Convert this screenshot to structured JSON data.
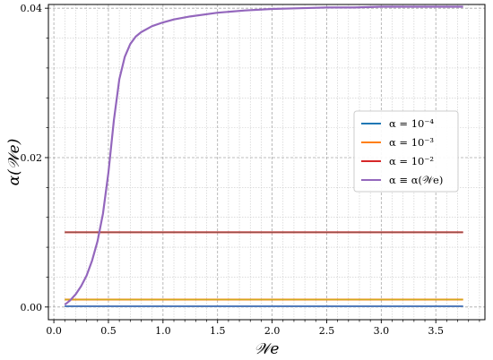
{
  "chart_data": {
    "type": "line",
    "title": "",
    "xlabel": "𝒲e",
    "ylabel": "α(𝒲e)",
    "xlim": [
      -0.05,
      3.95
    ],
    "ylim": [
      -0.0017,
      0.0405
    ],
    "x_ticks": [
      0.0,
      0.5,
      1.0,
      1.5,
      2.0,
      2.5,
      3.0,
      3.5
    ],
    "x_tick_labels": [
      "0.0",
      "0.5",
      "1.0",
      "1.5",
      "2.0",
      "2.5",
      "3.0",
      "3.5"
    ],
    "x_minor_ticks": [
      0.1,
      0.2,
      0.3,
      0.4,
      0.6,
      0.7,
      0.8,
      0.9,
      1.1,
      1.2,
      1.3,
      1.4,
      1.6,
      1.7,
      1.8,
      1.9,
      2.1,
      2.2,
      2.3,
      2.4,
      2.6,
      2.7,
      2.8,
      2.9,
      3.1,
      3.2,
      3.3,
      3.4,
      3.6,
      3.7,
      3.8,
      3.9
    ],
    "y_ticks": [
      0.0,
      0.02,
      0.04
    ],
    "y_tick_labels": [
      "0.00",
      "0.02",
      "0.04"
    ],
    "y_minor_ticks": [
      0.004,
      0.008,
      0.012,
      0.016,
      0.024,
      0.028,
      0.032,
      0.036
    ],
    "grid": true,
    "legend_position": "right",
    "series": [
      {
        "name": "α = 10⁻⁴",
        "color": "#1f77b4",
        "x": [
          0.1,
          3.75
        ],
        "y": [
          0.0001,
          0.0001
        ]
      },
      {
        "name": "α = 10⁻³",
        "color": "#ff7f0e",
        "x": [
          0.1,
          3.75
        ],
        "y": [
          0.001,
          0.001
        ]
      },
      {
        "name": "α = 10⁻²",
        "color": "#d62728",
        "x": [
          0.1,
          3.75
        ],
        "y": [
          0.01,
          0.01
        ]
      },
      {
        "name": "α ≡ α(𝒲e)",
        "color": "#9467bd",
        "x": [
          0.1,
          0.15,
          0.2,
          0.25,
          0.3,
          0.35,
          0.4,
          0.45,
          0.5,
          0.55,
          0.6,
          0.65,
          0.7,
          0.75,
          0.8,
          0.9,
          1.0,
          1.1,
          1.25,
          1.5,
          1.75,
          2.0,
          2.25,
          2.5,
          2.75,
          3.0,
          3.25,
          3.5,
          3.75
        ],
        "y": [
          0.0003,
          0.0009,
          0.0017,
          0.0028,
          0.0042,
          0.0062,
          0.0088,
          0.0125,
          0.018,
          0.025,
          0.0305,
          0.0335,
          0.0352,
          0.0362,
          0.0368,
          0.0376,
          0.0381,
          0.0385,
          0.0389,
          0.0394,
          0.0397,
          0.0399,
          0.04,
          0.0401,
          0.0401,
          0.0402,
          0.0402,
          0.0402,
          0.0402
        ]
      }
    ],
    "reference_lines": [
      {
        "color": "#8c564b",
        "x": [
          0.1,
          3.75
        ],
        "y": [
          0.01,
          0.01
        ]
      },
      {
        "color": "#7f7fbf",
        "x": [
          0.1,
          3.75
        ],
        "y": [
          0.0001,
          0.0001
        ]
      },
      {
        "color": "#c7b01e",
        "x": [
          0.1,
          3.75
        ],
        "y": [
          0.001,
          0.001
        ]
      }
    ]
  }
}
